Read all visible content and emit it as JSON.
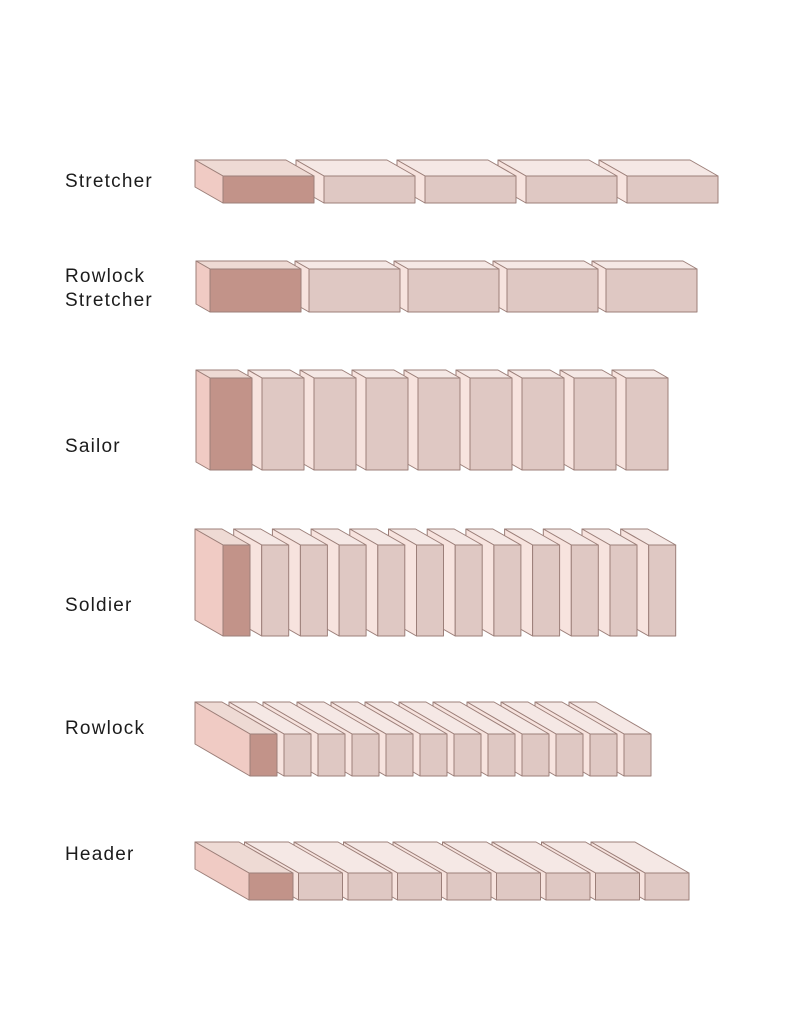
{
  "colors": {
    "accent_front": "#c29389",
    "accent_top": "#eedad4",
    "accent_side": "#f0cbc4",
    "light_front": "#dfc8c3",
    "light_top": "#f5e8e5",
    "light_side": "#f7e3de",
    "stroke": "#9c7f79"
  },
  "rows": [
    {
      "id": "stretcher",
      "lines": [
        "Stretcher"
      ]
    },
    {
      "id": "rowlock-stretcher",
      "lines": [
        "Rowlock",
        "Stretcher"
      ]
    },
    {
      "id": "sailor",
      "lines": [
        "Sailor"
      ]
    },
    {
      "id": "soldier",
      "lines": [
        "Soldier"
      ]
    },
    {
      "id": "rowlock",
      "lines": [
        "Rowlock"
      ]
    },
    {
      "id": "header",
      "lines": [
        "Header"
      ]
    }
  ]
}
